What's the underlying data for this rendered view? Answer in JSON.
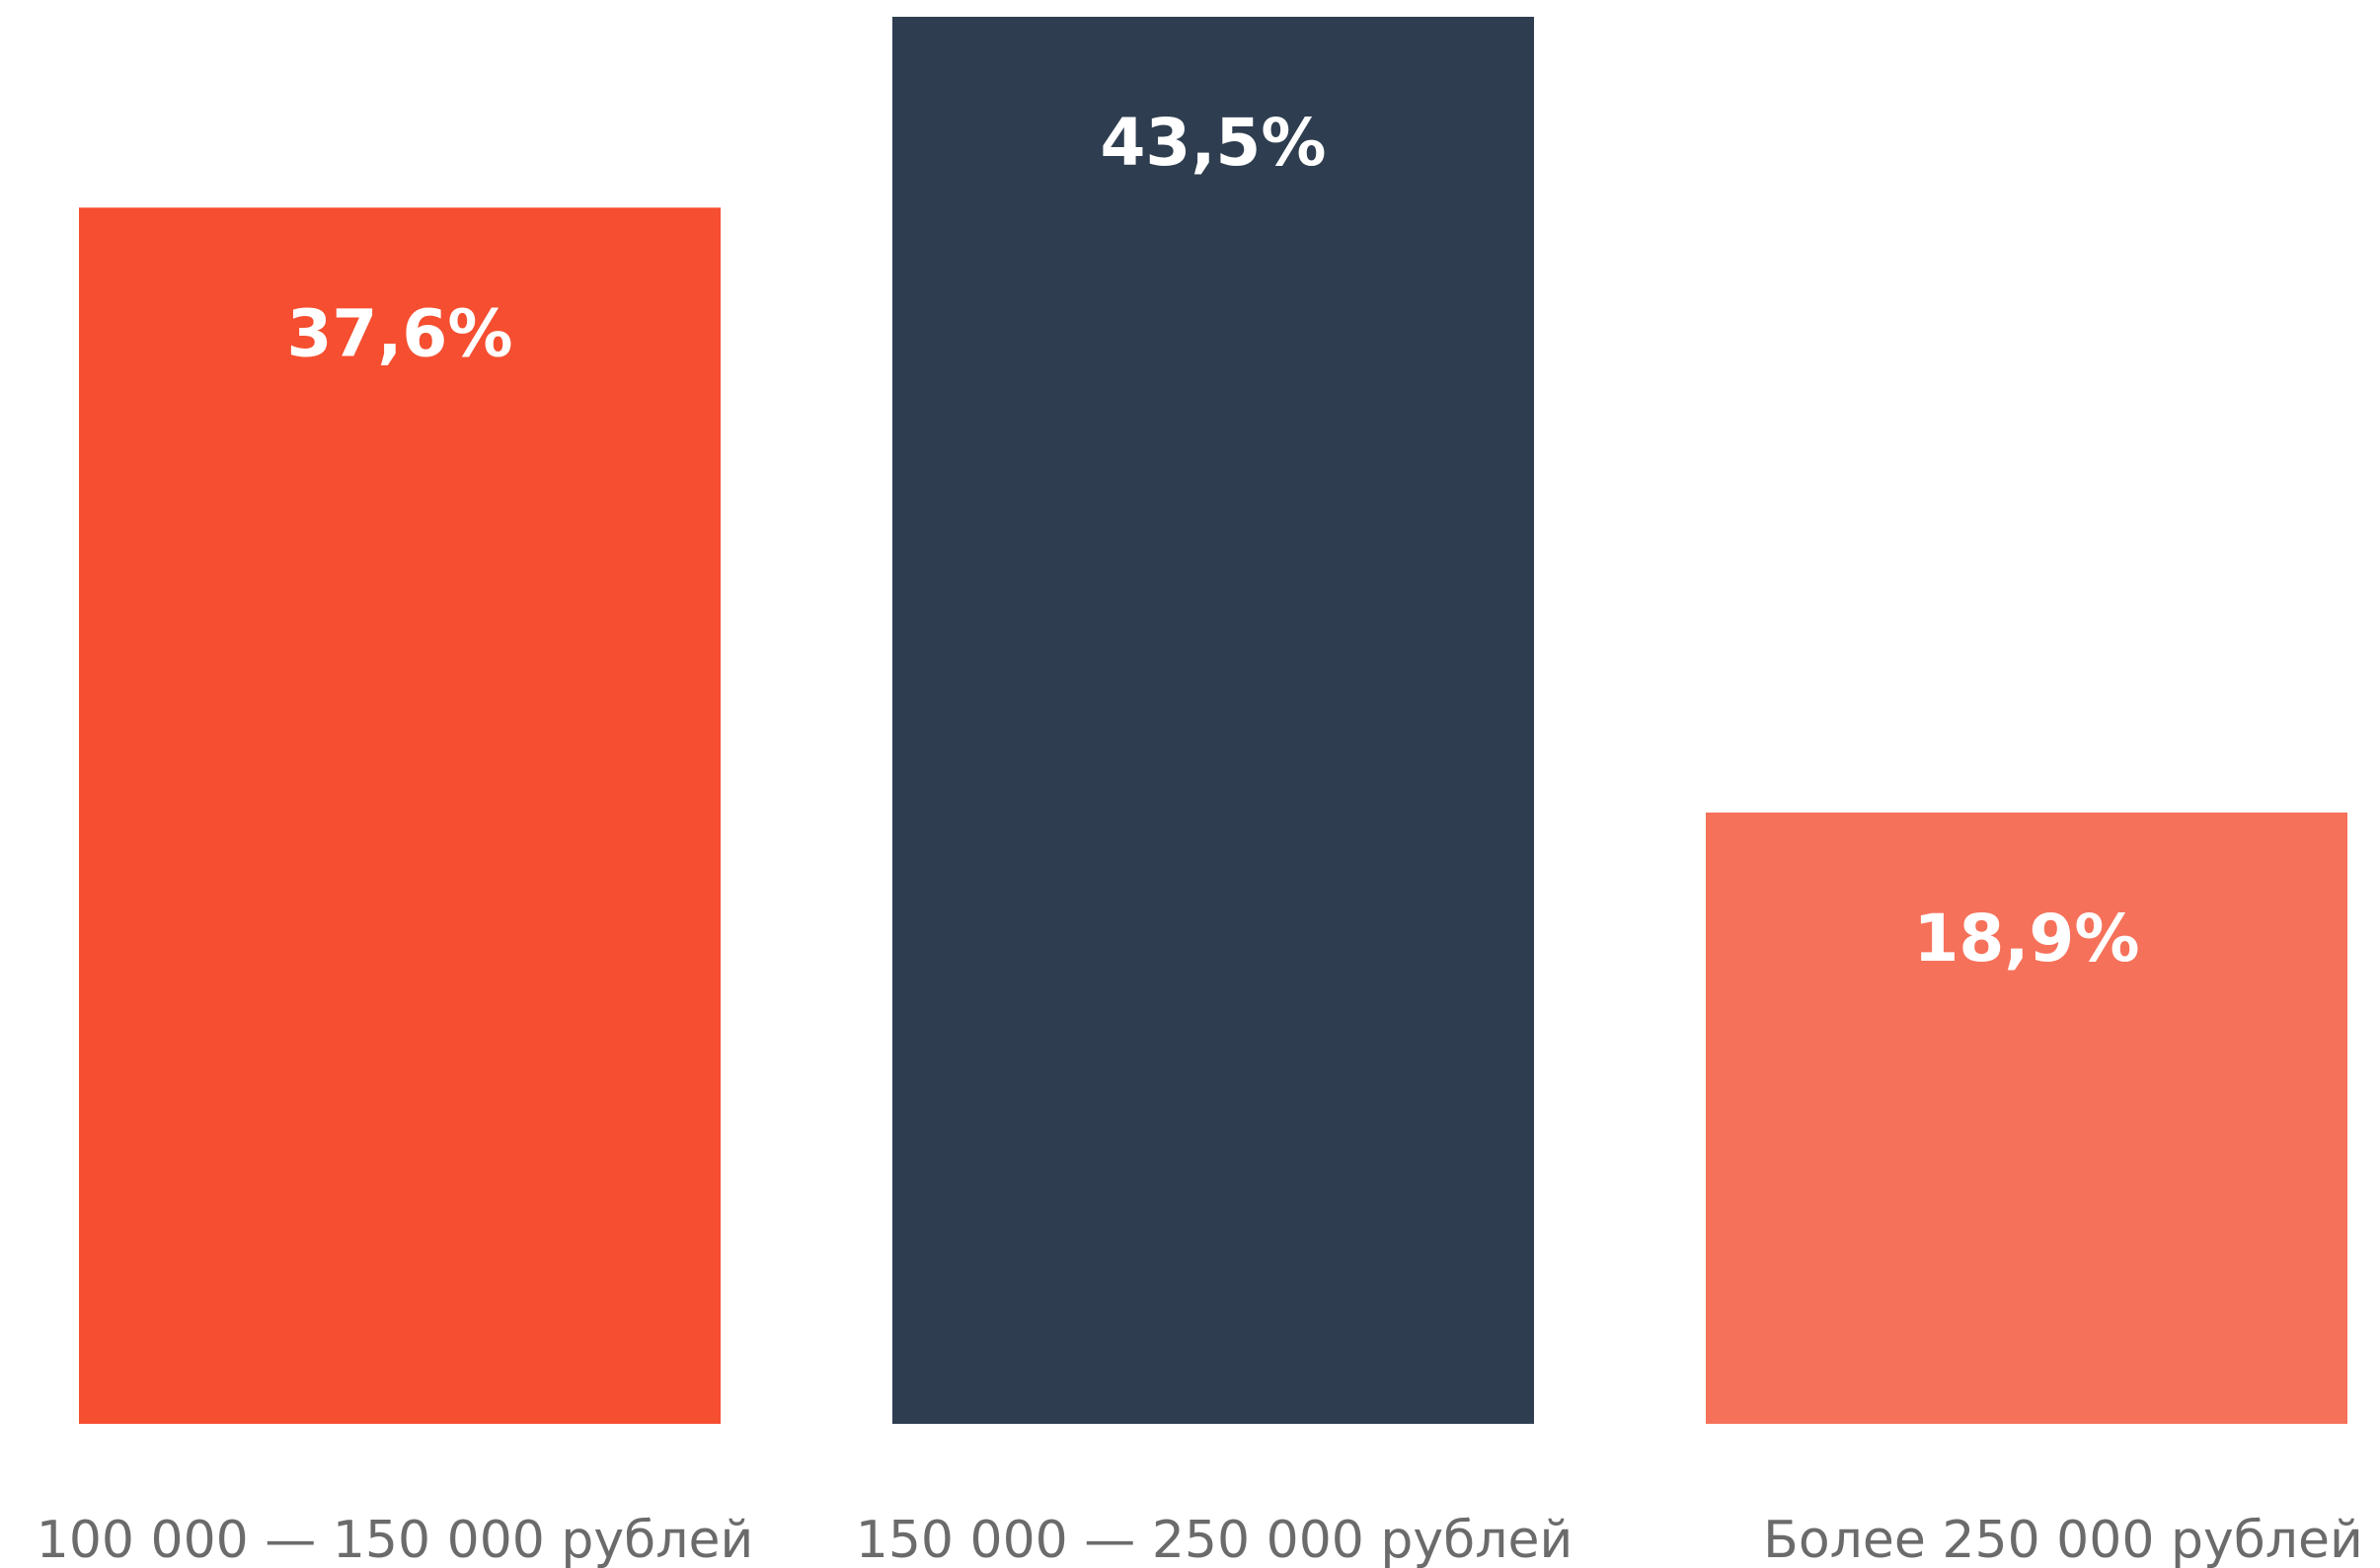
{
  "chart_data": {
    "type": "bar",
    "categories": [
      "100 000 — 150 000 рублей",
      "150 000 — 250 000 рублей",
      "Более 250 000 рублей"
    ],
    "values": [
      37.6,
      43.5,
      18.9
    ],
    "value_labels": [
      "37,6%",
      "43,5%",
      "18,9%"
    ],
    "colors": [
      "#f54e30",
      "#2e3e50",
      "#f6715a"
    ],
    "title": "",
    "xlabel": "",
    "ylabel": "",
    "ylim": [
      0,
      43.5
    ],
    "grid": false,
    "legend": "none"
  }
}
